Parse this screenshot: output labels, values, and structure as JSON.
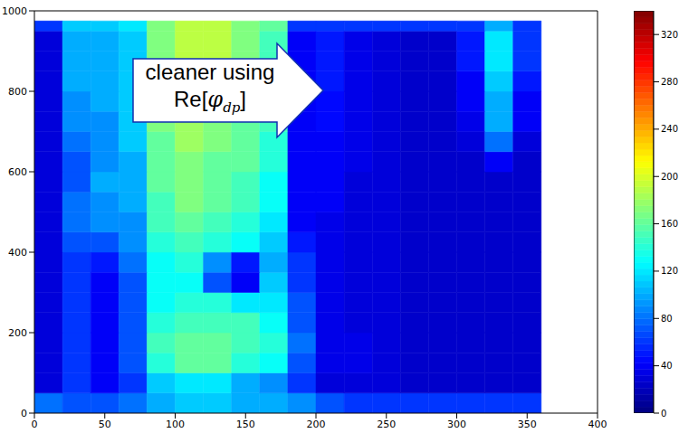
{
  "chart_data": {
    "type": "heatmap",
    "color": "jet",
    "xlim": [
      0,
      400
    ],
    "xticks": [
      0,
      50,
      100,
      150,
      200,
      250,
      300,
      350,
      400
    ],
    "ylim": [
      0,
      1000
    ],
    "yticks": [
      0,
      200,
      400,
      600,
      800,
      1000
    ],
    "annotation": [
      "cleaner using",
      "Re[",
      "φ",
      "dp",
      "]"
    ],
    "x_edges": [
      0,
      20,
      40,
      60,
      80,
      100,
      120,
      140,
      160,
      180,
      200,
      220,
      240,
      260,
      280,
      300,
      320,
      340,
      360
    ],
    "y_edges": [
      0,
      50,
      100,
      150,
      200,
      250,
      300,
      350,
      400,
      450,
      500,
      550,
      600,
      650,
      700,
      750,
      800,
      850,
      900,
      950,
      975
    ],
    "cells": [
      [
        80,
        70,
        70,
        80,
        100,
        110,
        110,
        100,
        100,
        90,
        70,
        60,
        60,
        60,
        60,
        60,
        60,
        60
      ],
      [
        30,
        60,
        40,
        60,
        110,
        120,
        120,
        100,
        90,
        60,
        30,
        30,
        30,
        25,
        25,
        25,
        25,
        25
      ],
      [
        30,
        60,
        40,
        70,
        140,
        160,
        160,
        140,
        130,
        70,
        35,
        35,
        30,
        25,
        25,
        25,
        25,
        25
      ],
      [
        30,
        60,
        40,
        70,
        150,
        160,
        160,
        150,
        140,
        80,
        35,
        35,
        30,
        25,
        25,
        25,
        25,
        25
      ],
      [
        30,
        60,
        40,
        70,
        140,
        150,
        150,
        150,
        130,
        70,
        35,
        30,
        30,
        25,
        25,
        25,
        25,
        25
      ],
      [
        30,
        60,
        40,
        70,
        130,
        140,
        140,
        120,
        120,
        70,
        35,
        30,
        30,
        25,
        25,
        25,
        25,
        25
      ],
      [
        30,
        60,
        40,
        70,
        130,
        130,
        70,
        40,
        110,
        60,
        35,
        30,
        30,
        25,
        25,
        25,
        25,
        25
      ],
      [
        30,
        60,
        50,
        80,
        130,
        140,
        90,
        50,
        100,
        60,
        35,
        30,
        30,
        25,
        25,
        25,
        25,
        25
      ],
      [
        30,
        70,
        70,
        90,
        140,
        150,
        140,
        130,
        110,
        50,
        35,
        30,
        30,
        25,
        25,
        25,
        25,
        25
      ],
      [
        30,
        80,
        90,
        90,
        150,
        160,
        150,
        140,
        120,
        40,
        35,
        30,
        30,
        25,
        25,
        25,
        25,
        25
      ],
      [
        30,
        80,
        90,
        100,
        150,
        170,
        160,
        150,
        130,
        40,
        40,
        30,
        30,
        25,
        25,
        25,
        25,
        25
      ],
      [
        30,
        70,
        100,
        100,
        160,
        170,
        160,
        150,
        130,
        40,
        40,
        30,
        30,
        25,
        25,
        25,
        25,
        25
      ],
      [
        30,
        70,
        90,
        100,
        160,
        170,
        160,
        160,
        140,
        40,
        40,
        35,
        30,
        25,
        25,
        25,
        40,
        25
      ],
      [
        30,
        80,
        90,
        110,
        160,
        180,
        170,
        160,
        140,
        40,
        40,
        35,
        30,
        25,
        25,
        30,
        80,
        30
      ],
      [
        30,
        90,
        90,
        110,
        170,
        180,
        170,
        160,
        150,
        40,
        45,
        35,
        30,
        25,
        25,
        35,
        100,
        40
      ],
      [
        30,
        90,
        100,
        110,
        170,
        180,
        180,
        170,
        150,
        40,
        45,
        35,
        30,
        25,
        25,
        40,
        100,
        40
      ],
      [
        30,
        100,
        100,
        110,
        170,
        190,
        180,
        170,
        150,
        40,
        50,
        35,
        30,
        25,
        25,
        40,
        110,
        50
      ],
      [
        30,
        100,
        100,
        110,
        170,
        190,
        190,
        170,
        150,
        40,
        50,
        35,
        30,
        25,
        25,
        50,
        120,
        60
      ],
      [
        30,
        100,
        100,
        110,
        170,
        190,
        190,
        170,
        150,
        40,
        50,
        35,
        30,
        25,
        25,
        50,
        120,
        60
      ],
      [
        60,
        110,
        110,
        120,
        170,
        190,
        190,
        170,
        160,
        60,
        60,
        60,
        60,
        60,
        60,
        60,
        100,
        60
      ]
    ],
    "colorbar": {
      "range": [
        0,
        340
      ],
      "ticks": [
        0,
        40,
        80,
        120,
        160,
        200,
        240,
        280,
        320
      ]
    }
  }
}
